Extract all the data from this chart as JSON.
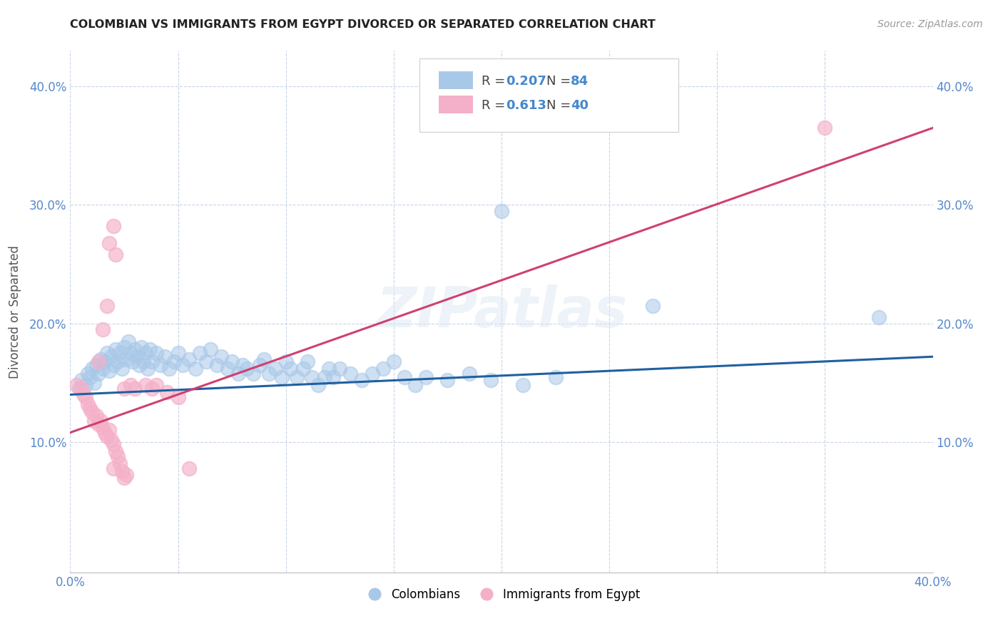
{
  "title": "COLOMBIAN VS IMMIGRANTS FROM EGYPT DIVORCED OR SEPARATED CORRELATION CHART",
  "source": "Source: ZipAtlas.com",
  "ylabel": "Divorced or Separated",
  "xlim": [
    0.0,
    0.4
  ],
  "ylim": [
    -0.01,
    0.43
  ],
  "yticks": [
    0.1,
    0.2,
    0.3,
    0.4
  ],
  "ytick_labels": [
    "10.0%",
    "20.0%",
    "30.0%",
    "40.0%"
  ],
  "xticks": [
    0.0,
    0.05,
    0.1,
    0.15,
    0.2,
    0.25,
    0.3,
    0.35,
    0.4
  ],
  "xtick_labels": [
    "0.0%",
    "",
    "",
    "",
    "",
    "",
    "",
    "",
    "40.0%"
  ],
  "watermark": "ZIPatlas",
  "blue_color": "#a8c8e8",
  "pink_color": "#f4b0c8",
  "blue_line_color": "#2060a0",
  "pink_line_color": "#d04070",
  "legend_blue_text": "#4080c0",
  "legend_pink_text": "#d04070",
  "blue_line_start_y": 0.14,
  "blue_line_end_y": 0.172,
  "pink_line_start_y": 0.108,
  "pink_line_end_y": 0.365,
  "blue_scatter": [
    [
      0.004,
      0.145
    ],
    [
      0.005,
      0.152
    ],
    [
      0.007,
      0.148
    ],
    [
      0.008,
      0.158
    ],
    [
      0.009,
      0.155
    ],
    [
      0.01,
      0.162
    ],
    [
      0.011,
      0.15
    ],
    [
      0.012,
      0.165
    ],
    [
      0.013,
      0.158
    ],
    [
      0.014,
      0.17
    ],
    [
      0.015,
      0.162
    ],
    [
      0.016,
      0.168
    ],
    [
      0.017,
      0.175
    ],
    [
      0.018,
      0.16
    ],
    [
      0.019,
      0.172
    ],
    [
      0.02,
      0.165
    ],
    [
      0.021,
      0.178
    ],
    [
      0.022,
      0.168
    ],
    [
      0.023,
      0.175
    ],
    [
      0.024,
      0.162
    ],
    [
      0.025,
      0.18
    ],
    [
      0.026,
      0.17
    ],
    [
      0.027,
      0.185
    ],
    [
      0.028,
      0.175
    ],
    [
      0.029,
      0.168
    ],
    [
      0.03,
      0.178
    ],
    [
      0.031,
      0.172
    ],
    [
      0.032,
      0.165
    ],
    [
      0.033,
      0.18
    ],
    [
      0.034,
      0.168
    ],
    [
      0.035,
      0.175
    ],
    [
      0.036,
      0.162
    ],
    [
      0.037,
      0.178
    ],
    [
      0.038,
      0.168
    ],
    [
      0.04,
      0.175
    ],
    [
      0.042,
      0.165
    ],
    [
      0.044,
      0.172
    ],
    [
      0.046,
      0.162
    ],
    [
      0.048,
      0.168
    ],
    [
      0.05,
      0.175
    ],
    [
      0.052,
      0.165
    ],
    [
      0.055,
      0.17
    ],
    [
      0.058,
      0.162
    ],
    [
      0.06,
      0.175
    ],
    [
      0.063,
      0.168
    ],
    [
      0.065,
      0.178
    ],
    [
      0.068,
      0.165
    ],
    [
      0.07,
      0.172
    ],
    [
      0.073,
      0.162
    ],
    [
      0.075,
      0.168
    ],
    [
      0.078,
      0.158
    ],
    [
      0.08,
      0.165
    ],
    [
      0.082,
      0.162
    ],
    [
      0.085,
      0.158
    ],
    [
      0.088,
      0.165
    ],
    [
      0.09,
      0.17
    ],
    [
      0.092,
      0.158
    ],
    [
      0.095,
      0.162
    ],
    [
      0.098,
      0.155
    ],
    [
      0.1,
      0.168
    ],
    [
      0.102,
      0.162
    ],
    [
      0.105,
      0.155
    ],
    [
      0.108,
      0.162
    ],
    [
      0.11,
      0.168
    ],
    [
      0.112,
      0.155
    ],
    [
      0.115,
      0.148
    ],
    [
      0.118,
      0.155
    ],
    [
      0.12,
      0.162
    ],
    [
      0.122,
      0.155
    ],
    [
      0.125,
      0.162
    ],
    [
      0.13,
      0.158
    ],
    [
      0.135,
      0.152
    ],
    [
      0.14,
      0.158
    ],
    [
      0.145,
      0.162
    ],
    [
      0.15,
      0.168
    ],
    [
      0.155,
      0.155
    ],
    [
      0.16,
      0.148
    ],
    [
      0.165,
      0.155
    ],
    [
      0.175,
      0.152
    ],
    [
      0.185,
      0.158
    ],
    [
      0.195,
      0.152
    ],
    [
      0.21,
      0.148
    ],
    [
      0.225,
      0.155
    ],
    [
      0.2,
      0.295
    ],
    [
      0.27,
      0.215
    ],
    [
      0.375,
      0.205
    ]
  ],
  "pink_scatter": [
    [
      0.003,
      0.148
    ],
    [
      0.005,
      0.145
    ],
    [
      0.006,
      0.14
    ],
    [
      0.007,
      0.138
    ],
    [
      0.008,
      0.132
    ],
    [
      0.009,
      0.128
    ],
    [
      0.01,
      0.125
    ],
    [
      0.011,
      0.118
    ],
    [
      0.012,
      0.122
    ],
    [
      0.013,
      0.115
    ],
    [
      0.014,
      0.118
    ],
    [
      0.015,
      0.112
    ],
    [
      0.016,
      0.108
    ],
    [
      0.017,
      0.105
    ],
    [
      0.018,
      0.11
    ],
    [
      0.019,
      0.102
    ],
    [
      0.02,
      0.098
    ],
    [
      0.021,
      0.092
    ],
    [
      0.022,
      0.088
    ],
    [
      0.023,
      0.082
    ],
    [
      0.024,
      0.075
    ],
    [
      0.025,
      0.07
    ],
    [
      0.026,
      0.072
    ],
    [
      0.013,
      0.168
    ],
    [
      0.015,
      0.195
    ],
    [
      0.017,
      0.215
    ],
    [
      0.018,
      0.268
    ],
    [
      0.02,
      0.282
    ],
    [
      0.021,
      0.258
    ],
    [
      0.025,
      0.145
    ],
    [
      0.028,
      0.148
    ],
    [
      0.03,
      0.145
    ],
    [
      0.035,
      0.148
    ],
    [
      0.038,
      0.145
    ],
    [
      0.04,
      0.148
    ],
    [
      0.045,
      0.142
    ],
    [
      0.05,
      0.138
    ],
    [
      0.02,
      0.078
    ],
    [
      0.055,
      0.078
    ],
    [
      0.35,
      0.365
    ]
  ]
}
